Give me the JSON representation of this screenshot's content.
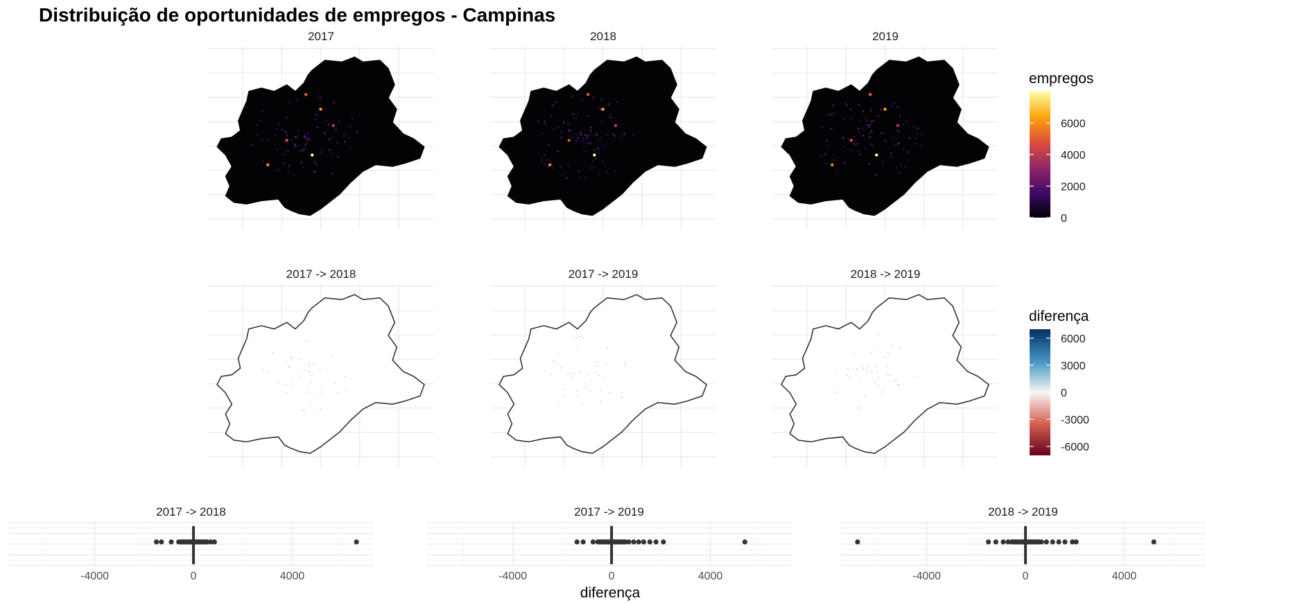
{
  "chart_data": [
    {
      "type": "heatmap",
      "title": "Distribuição de oportunidades de empregos - Campinas",
      "panels": [
        "2017",
        "2018",
        "2019"
      ],
      "legend": {
        "title": "empregos",
        "ticks": [
          "0",
          "2000",
          "4000",
          "6000"
        ],
        "tick_values": [
          0,
          2000,
          4000,
          6000
        ],
        "range": [
          0,
          8000
        ],
        "colors": [
          "#000004",
          "#420a68",
          "#932667",
          "#dd513a",
          "#fca50a",
          "#fcffa4"
        ],
        "position": "right"
      }
    },
    {
      "type": "heatmap",
      "panels": [
        "2017 -> 2018",
        "2017 -> 2019",
        "2018 -> 2019"
      ],
      "legend": {
        "title": "diferença",
        "ticks": [
          "6000",
          "3000",
          "0",
          "-3000",
          "-6000"
        ],
        "tick_values": [
          6000,
          3000,
          0,
          -3000,
          -6000
        ],
        "range": [
          -7000,
          7000
        ],
        "colors": [
          "#67001f",
          "#d6604d",
          "#f7f7f7",
          "#4393c3",
          "#053061"
        ],
        "position": "right"
      }
    },
    {
      "type": "scatter",
      "xlabel": "diferença",
      "x_ticks": [
        "-4000",
        "0",
        "4000"
      ],
      "x_tick_values": [
        -4000,
        0,
        4000
      ],
      "xlim": [
        -7500,
        7300
      ],
      "panels": [
        {
          "name": "2017 -> 2018",
          "x": [
            -1500,
            -1300,
            -900,
            -600,
            -450,
            -300,
            -200,
            -100,
            0,
            100,
            200,
            300,
            400,
            550,
            700,
            850,
            6600
          ]
        },
        {
          "name": "2017 -> 2019",
          "x": [
            -1400,
            -1150,
            -750,
            -550,
            -400,
            -250,
            -120,
            0,
            120,
            250,
            400,
            550,
            700,
            900,
            1100,
            1300,
            1550,
            1800,
            2100,
            5400
          ]
        },
        {
          "name": "2018 -> 2019",
          "x": [
            -6800,
            -1500,
            -1200,
            -900,
            -700,
            -500,
            -350,
            -200,
            -100,
            0,
            100,
            200,
            350,
            500,
            650,
            850,
            1100,
            1350,
            1600,
            1900,
            2050,
            5200
          ]
        }
      ]
    }
  ]
}
